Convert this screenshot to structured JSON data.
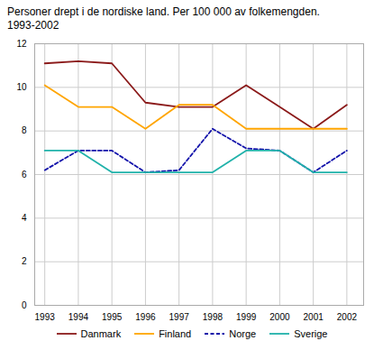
{
  "chart_data": {
    "type": "line",
    "title": "Personer drept i de nordiske land. Per 100 000 av folkemengden.\n1993-2002",
    "x": [
      1993,
      1994,
      1995,
      1996,
      1997,
      1998,
      1999,
      2000,
      2001,
      2002
    ],
    "series": [
      {
        "name": "Danmark",
        "color": "#8B1A1A",
        "line_style": "solid",
        "values": [
          11.1,
          11.2,
          11.1,
          9.3,
          9.1,
          9.1,
          10.1,
          9.1,
          8.1,
          9.2
        ]
      },
      {
        "name": "Finland",
        "color": "#FFA500",
        "line_style": "solid",
        "values": [
          10.1,
          9.1,
          9.1,
          8.1,
          9.2,
          9.2,
          8.1,
          8.1,
          8.1,
          8.1
        ]
      },
      {
        "name": "Norge",
        "color": "#1111AA",
        "line_style": "dashed",
        "values": [
          6.2,
          7.1,
          7.1,
          6.1,
          6.2,
          8.1,
          7.2,
          7.1,
          6.1,
          7.1
        ]
      },
      {
        "name": "Sverige",
        "color": "#20B2AA",
        "line_style": "solid",
        "values": [
          7.1,
          7.1,
          6.1,
          6.1,
          6.1,
          6.1,
          7.1,
          7.1,
          6.1,
          6.1
        ]
      }
    ],
    "xlim": [
      1992.7,
      2002.5
    ],
    "xticks": [
      1993,
      1994,
      1995,
      1996,
      1997,
      1998,
      1999,
      2000,
      2001,
      2002
    ],
    "ylim": [
      0,
      12
    ],
    "yticks": [
      0,
      2,
      4,
      6,
      8,
      10,
      12
    ],
    "grid": true,
    "legend": "bottom"
  }
}
